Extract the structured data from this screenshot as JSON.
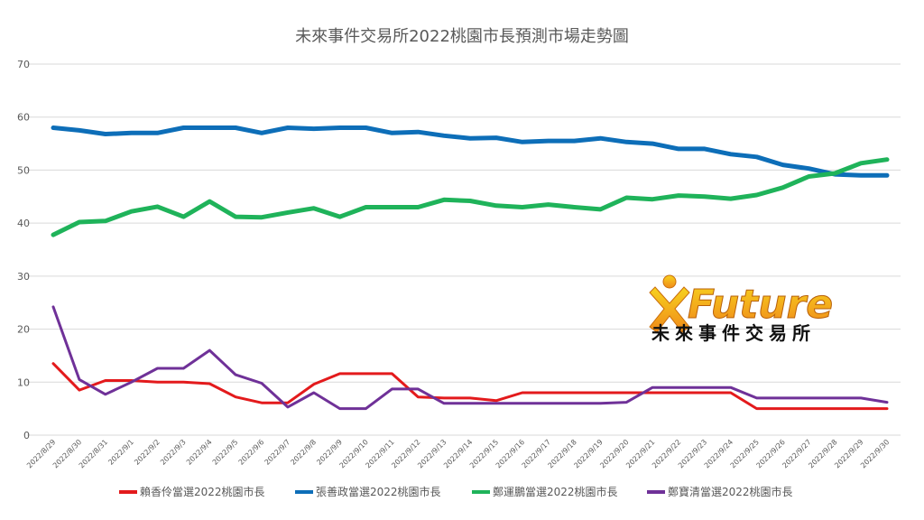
{
  "chart_data": {
    "type": "line",
    "title": "未來事件交易所2022桃園市長預測市場走勢圖",
    "xlabel": "",
    "ylabel": "",
    "ylim": [
      0,
      70
    ],
    "yticks": [
      0,
      10,
      20,
      30,
      40,
      50,
      60,
      70
    ],
    "grid": true,
    "legend_position": "bottom",
    "x": [
      "2022/8/29",
      "2022/8/30",
      "2022/8/31",
      "2022/9/1",
      "2022/9/2",
      "2022/9/3",
      "2022/9/4",
      "2022/9/5",
      "2022/9/6",
      "2022/9/7",
      "2022/9/8",
      "2022/9/9",
      "2022/9/10",
      "2022/9/11",
      "2022/9/12",
      "2022/9/13",
      "2022/9/14",
      "2022/9/15",
      "2022/9/16",
      "2022/9/17",
      "2022/9/18",
      "2022/9/19",
      "2022/9/20",
      "2022/9/21",
      "2022/9/22",
      "2022/9/23",
      "2022/9/24",
      "2022/9/25",
      "2022/9/26",
      "2022/9/27",
      "2022/9/28",
      "2022/9/29",
      "2022/9/30"
    ],
    "series": [
      {
        "name": "賴香伶當選2022桃園市長",
        "color": "#e31a1c",
        "values": [
          13.5,
          8.5,
          10.3,
          10.3,
          10.0,
          10.0,
          9.7,
          7.2,
          6.1,
          6.1,
          9.6,
          11.6,
          11.6,
          11.6,
          7.2,
          7.0,
          7.0,
          6.5,
          8.0,
          8.0,
          8.0,
          8.0,
          8.0,
          8.0,
          8.0,
          8.0,
          8.0,
          5.0,
          5.0,
          5.0,
          5.0,
          5.0,
          5.0
        ]
      },
      {
        "name": "張善政當選2022桃園市長",
        "color": "#0d6eb8",
        "values": [
          58.0,
          57.5,
          56.8,
          57.0,
          57.0,
          58.0,
          58.0,
          58.0,
          57.0,
          58.0,
          57.8,
          58.0,
          58.0,
          57.0,
          57.2,
          56.5,
          56.0,
          56.1,
          55.3,
          55.5,
          55.5,
          56.0,
          55.3,
          55.0,
          54.0,
          54.0,
          53.0,
          52.5,
          51.0,
          50.3,
          49.2,
          49.0,
          49.0
        ]
      },
      {
        "name": "鄭運鵬當選2022桃園市長",
        "color": "#1fb35a",
        "values": [
          37.8,
          40.2,
          40.4,
          42.2,
          43.1,
          41.2,
          44.1,
          41.2,
          41.1,
          42.0,
          42.8,
          41.2,
          43.0,
          43.0,
          43.0,
          44.4,
          44.2,
          43.3,
          43.0,
          43.5,
          43.0,
          42.6,
          44.8,
          44.5,
          45.2,
          45.0,
          44.6,
          45.3,
          46.7,
          48.8,
          49.4,
          51.3,
          52.0
        ]
      },
      {
        "name": "鄭寶清當選2022桃園市長",
        "color": "#6f3198",
        "values": [
          24.2,
          10.5,
          7.7,
          10.0,
          12.6,
          12.6,
          16.0,
          11.4,
          9.8,
          5.3,
          8.0,
          5.0,
          5.0,
          8.7,
          8.7,
          6.0,
          6.0,
          6.0,
          6.0,
          6.0,
          6.0,
          6.0,
          6.2,
          9.0,
          9.0,
          9.0,
          9.0,
          7.0,
          7.0,
          7.0,
          7.0,
          7.0,
          6.2
        ]
      }
    ]
  },
  "logo": {
    "brand": "Future",
    "subtitle": "未來事件交易所",
    "colors": {
      "brand_gradient_top": "#f7d21e",
      "brand_gradient_bottom": "#f08a1a",
      "icon": "#f39c12"
    },
    "icon": "x-person-icon"
  }
}
